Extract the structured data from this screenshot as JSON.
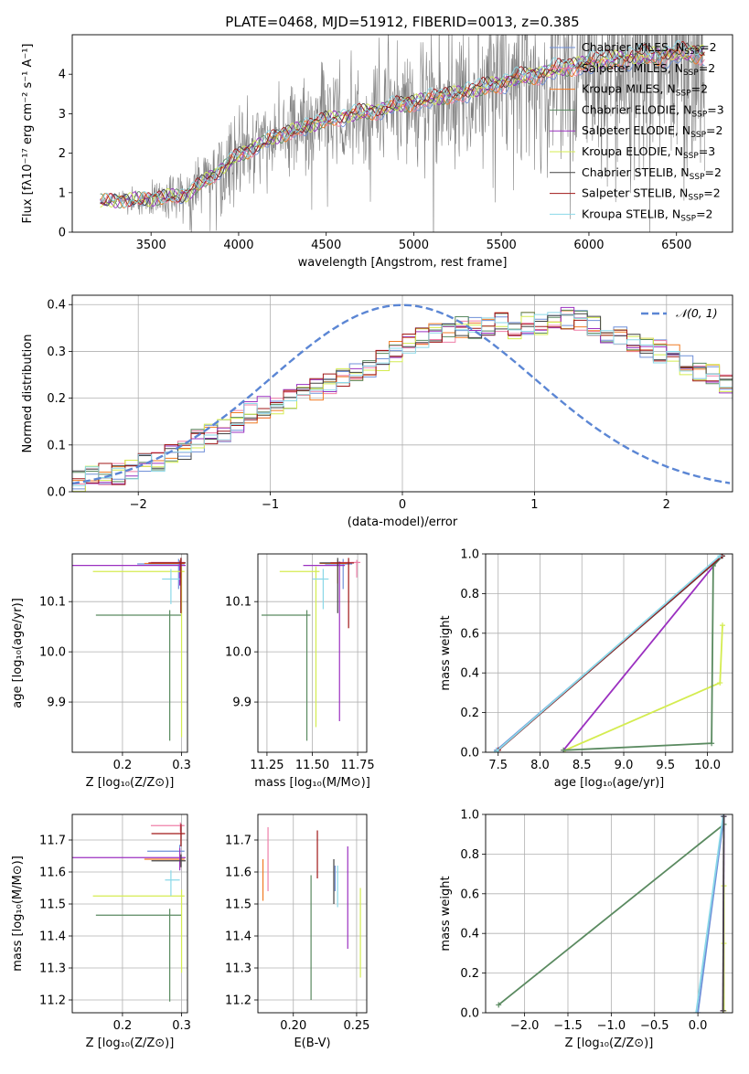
{
  "title": "PLATE=0468, MJD=51912, FIBERID=0013, z=0.385",
  "colors": {
    "chabrier_miles": "#6f8fd8",
    "salpeter_miles": "#ef7fa8",
    "kroupa_miles": "#f07a22",
    "chabrier_elodie": "#5a8a60",
    "salpeter_elodie": "#9b30c0",
    "kroupa_elodie": "#d4ec50",
    "chabrier_stelib": "#444444",
    "salpeter_stelib": "#a01818",
    "kroupa_stelib": "#8ad8e8",
    "gauss": "#5b86d4",
    "data": "#808080",
    "grid": "#b0b0b0"
  },
  "chart_data": [
    {
      "id": "spectrum",
      "type": "line",
      "xlabel": "wavelength [Angstrom, rest frame]",
      "ylabel": "Flux [fλ10⁻¹⁷ erg cm⁻² s⁻¹ A⁻¹]",
      "xlim": [
        3050,
        6820
      ],
      "ylim": [
        0,
        5
      ],
      "xticks": [
        3500,
        4000,
        4500,
        5000,
        5500,
        6000,
        6500
      ],
      "yticks": [
        0,
        1,
        2,
        3,
        4
      ],
      "grid": false,
      "legend_position": "top-right",
      "data_range": [
        3210,
        6660
      ],
      "legend": [
        {
          "label": "Chabrier MILES, N",
          "sub": "SSP",
          "tail": "=2",
          "color_key": "chabrier_miles"
        },
        {
          "label": "Salpeter MILES, N",
          "sub": "SSP",
          "tail": "=2",
          "color_key": "salpeter_miles"
        },
        {
          "label": "Kroupa MILES, N",
          "sub": "SSP",
          "tail": "=2",
          "color_key": "kroupa_miles"
        },
        {
          "label": "Chabrier ELODIE, N",
          "sub": "SSP",
          "tail": "=3",
          "color_key": "chabrier_elodie"
        },
        {
          "label": "Salpeter ELODIE, N",
          "sub": "SSP",
          "tail": "=2",
          "color_key": "salpeter_elodie"
        },
        {
          "label": "Kroupa ELODIE, N",
          "sub": "SSP",
          "tail": "=3",
          "color_key": "kroupa_elodie"
        },
        {
          "label": "Chabrier STELIB, N",
          "sub": "SSP",
          "tail": "=2",
          "color_key": "chabrier_stelib"
        },
        {
          "label": "Salpeter STELIB, N",
          "sub": "SSP",
          "tail": "=2",
          "color_key": "salpeter_stelib"
        },
        {
          "label": "Kroupa STELIB, N",
          "sub": "SSP",
          "tail": "=2",
          "color_key": "kroupa_stelib"
        }
      ],
      "model_continuum": [
        [
          3210,
          0.78
        ],
        [
          3500,
          0.85
        ],
        [
          3700,
          0.95
        ],
        [
          3900,
          1.6
        ],
        [
          4000,
          1.95
        ],
        [
          4200,
          2.4
        ],
        [
          4500,
          2.85
        ],
        [
          4800,
          3.1
        ],
        [
          5000,
          3.3
        ],
        [
          5300,
          3.55
        ],
        [
          5600,
          3.9
        ],
        [
          5800,
          4.1
        ],
        [
          6000,
          4.3
        ],
        [
          6300,
          4.45
        ],
        [
          6660,
          4.55
        ]
      ],
      "noise_amplitude": [
        [
          3210,
          0.05
        ],
        [
          3520,
          0.4
        ],
        [
          3900,
          0.9
        ],
        [
          4500,
          1.2
        ],
        [
          5000,
          1.4
        ],
        [
          5500,
          1.9
        ],
        [
          6000,
          2.3
        ],
        [
          6660,
          2.6
        ]
      ]
    },
    {
      "id": "residuals",
      "type": "line",
      "xlabel": "(data-model)/error",
      "ylabel": "Normed distribution",
      "xlim": [
        -2.5,
        2.5
      ],
      "ylim": [
        0,
        0.42
      ],
      "xticks": [
        -2,
        -1,
        0,
        1,
        2
      ],
      "yticks": [
        0.0,
        0.1,
        0.2,
        0.3,
        0.4
      ],
      "grid": true,
      "legend_position": "top-right",
      "legend": [
        {
          "label": "𝒩(0, 1)",
          "color_key": "gauss"
        }
      ],
      "bin_width": 0.1,
      "base_histogram": [
        0.02,
        0.03,
        0.04,
        0.04,
        0.05,
        0.06,
        0.06,
        0.08,
        0.09,
        0.11,
        0.12,
        0.13,
        0.15,
        0.17,
        0.18,
        0.18,
        0.2,
        0.21,
        0.22,
        0.23,
        0.24,
        0.26,
        0.27,
        0.28,
        0.3,
        0.32,
        0.33,
        0.34,
        0.34,
        0.35,
        0.35,
        0.35,
        0.36,
        0.35,
        0.36,
        0.36,
        0.36,
        0.37,
        0.37,
        0.35,
        0.34,
        0.33,
        0.32,
        0.31,
        0.3,
        0.29,
        0.27,
        0.26,
        0.25,
        0.23,
        0.22,
        0.21,
        0.2,
        0.19,
        0.17,
        0.16,
        0.15,
        0.13,
        0.12,
        0.11,
        0.1,
        0.1,
        0.09,
        0.08,
        0.08,
        0.07,
        0.07,
        0.06,
        0.06,
        0.06
      ],
      "series_order": [
        "chabrier_miles",
        "salpeter_miles",
        "kroupa_miles",
        "chabrier_elodie",
        "salpeter_elodie",
        "kroupa_elodie",
        "chabrier_stelib",
        "salpeter_stelib",
        "kroupa_stelib"
      ]
    },
    {
      "id": "age_vs_Z",
      "type": "scatter",
      "xlabel": "Z [log₁₀(Z/Z⊙)]",
      "ylabel": "age  [log₁₀(age/yr)]",
      "xlim": [
        0.115,
        0.31
      ],
      "ylim": [
        9.8,
        10.195
      ],
      "xticks": [
        0.2,
        0.3
      ],
      "yticks": [
        9.9,
        10.0,
        10.1
      ],
      "grid": true,
      "points": [
        {
          "c": "chabrier_miles",
          "x": 0.295,
          "y": 10.175,
          "xerr": [
            0.07,
            0.01
          ],
          "yerr": [
            0.05,
            0.01
          ]
        },
        {
          "c": "salpeter_miles",
          "x": 0.298,
          "y": 10.178,
          "xerr": [
            0.05,
            0.008
          ],
          "yerr": [
            0.03,
            0.005
          ]
        },
        {
          "c": "kroupa_miles",
          "x": 0.297,
          "y": 10.176,
          "xerr": [
            0.06,
            0.008
          ],
          "yerr": [
            0.04,
            0.006
          ]
        },
        {
          "c": "chabrier_elodie",
          "x": 0.28,
          "y": 10.073,
          "xerr": [
            0.125,
            0.02
          ],
          "yerr": [
            0.25,
            0.01
          ]
        },
        {
          "c": "salpeter_elodie",
          "x": 0.297,
          "y": 10.172,
          "xerr": [
            0.185,
            0.01
          ],
          "yerr": [
            0.04,
            0.008
          ]
        },
        {
          "c": "kroupa_elodie",
          "x": 0.3,
          "y": 10.16,
          "xerr": [
            0.15,
            0.005
          ],
          "yerr": [
            0.33,
            0.01
          ]
        },
        {
          "c": "chabrier_stelib",
          "x": 0.299,
          "y": 10.177,
          "xerr": [
            0.05,
            0.008
          ],
          "yerr": [
            0.1,
            0.01
          ]
        },
        {
          "c": "salpeter_stelib",
          "x": 0.299,
          "y": 10.177,
          "xerr": [
            0.055,
            0.007
          ],
          "yerr": [
            0.1,
            0.01
          ]
        },
        {
          "c": "kroupa_stelib",
          "x": 0.282,
          "y": 10.145,
          "xerr": [
            0.015,
            0.015
          ],
          "yerr": [
            0.05,
            0.02
          ]
        }
      ]
    },
    {
      "id": "age_vs_mass",
      "type": "scatter",
      "xlabel": "mass [log₁₀(M/M⊙)]",
      "ylabel": "",
      "xlim": [
        11.2,
        11.8
      ],
      "ylim": [
        9.8,
        10.195
      ],
      "xticks": [
        11.25,
        11.5,
        11.75
      ],
      "yticks": [
        9.9,
        10.0,
        10.1
      ],
      "grid": true,
      "points": [
        {
          "c": "chabrier_miles",
          "x": 11.67,
          "y": 10.175,
          "xerr": [
            0.1,
            0.05
          ],
          "yerr": [
            0.05,
            0.01
          ]
        },
        {
          "c": "salpeter_miles",
          "x": 11.745,
          "y": 10.178,
          "xerr": [
            0.1,
            0.02
          ],
          "yerr": [
            0.03,
            0.005
          ]
        },
        {
          "c": "kroupa_miles",
          "x": 11.64,
          "y": 10.176,
          "xerr": [
            0.1,
            0.05
          ],
          "yerr": [
            0.04,
            0.006
          ]
        },
        {
          "c": "chabrier_elodie",
          "x": 11.47,
          "y": 10.073,
          "xerr": [
            0.25,
            0.02
          ],
          "yerr": [
            0.25,
            0.01
          ]
        },
        {
          "c": "salpeter_elodie",
          "x": 11.65,
          "y": 10.172,
          "xerr": [
            0.2,
            0.03
          ],
          "yerr": [
            0.31,
            0.008
          ]
        },
        {
          "c": "kroupa_elodie",
          "x": 11.52,
          "y": 10.16,
          "xerr": [
            0.2,
            0.02
          ],
          "yerr": [
            0.31,
            0.01
          ]
        },
        {
          "c": "chabrier_stelib",
          "x": 11.64,
          "y": 10.177,
          "xerr": [
            0.1,
            0.02
          ],
          "yerr": [
            0.1,
            0.01
          ]
        },
        {
          "c": "salpeter_stelib",
          "x": 11.7,
          "y": 10.177,
          "xerr": [
            0.1,
            0.03
          ],
          "yerr": [
            0.13,
            0.01
          ]
        },
        {
          "c": "kroupa_stelib",
          "x": 11.56,
          "y": 10.145,
          "xerr": [
            0.06,
            0.03
          ],
          "yerr": [
            0.06,
            0.02
          ]
        }
      ]
    },
    {
      "id": "weight_vs_age",
      "type": "line",
      "xlabel": "age  [log₁₀(age/yr)]",
      "ylabel": "mass weight",
      "xlim": [
        7.35,
        10.3
      ],
      "ylim": [
        0,
        1
      ],
      "xticks": [
        7.5,
        8.0,
        8.5,
        9.0,
        9.5,
        10.0
      ],
      "yticks": [
        0.0,
        0.2,
        0.4,
        0.6,
        0.8,
        1.0
      ],
      "grid": true,
      "series": [
        {
          "c": "kroupa_elodie",
          "x": [
            8.3,
            10.15,
            10.18
          ],
          "y": [
            0.01,
            0.35,
            0.64
          ]
        },
        {
          "c": "salpeter_elodie",
          "x": [
            8.28,
            10.17
          ],
          "y": [
            0.01,
            0.99
          ]
        },
        {
          "c": "chabrier_elodie",
          "x": [
            8.28,
            10.05,
            10.07,
            10.18
          ],
          "y": [
            0.01,
            0.045,
            0.94,
            0.99
          ]
        },
        {
          "c": "salpeter_miles",
          "x": [
            7.5,
            10.17
          ],
          "y": [
            0.01,
            0.99
          ]
        },
        {
          "c": "chabrier_miles",
          "x": [
            7.48,
            10.17
          ],
          "y": [
            0.01,
            0.99
          ]
        },
        {
          "c": "chabrier_stelib",
          "x": [
            7.5,
            10.18
          ],
          "y": [
            0.01,
            0.99
          ]
        },
        {
          "c": "salpeter_stelib",
          "x": [
            7.5,
            10.17
          ],
          "y": [
            0.01,
            0.99
          ]
        },
        {
          "c": "kroupa_stelib",
          "x": [
            7.48,
            10.15
          ],
          "y": [
            0.005,
            0.99
          ]
        }
      ]
    },
    {
      "id": "mass_vs_Z",
      "type": "scatter",
      "xlabel": "Z [log₁₀(Z/Z⊙)]",
      "ylabel": "mass [log₁₀(M/M⊙)]",
      "xlim": [
        0.115,
        0.31
      ],
      "ylim": [
        11.16,
        11.78
      ],
      "xticks": [
        0.2,
        0.3
      ],
      "yticks": [
        11.2,
        11.3,
        11.4,
        11.5,
        11.6,
        11.7
      ],
      "grid": true,
      "points": [
        {
          "c": "chabrier_miles",
          "x": 0.297,
          "y": 11.665,
          "xerr": [
            0.055,
            0.008
          ],
          "yerr": [
            0.03,
            0.02
          ]
        },
        {
          "c": "salpeter_miles",
          "x": 0.298,
          "y": 11.745,
          "xerr": [
            0.05,
            0.007
          ],
          "yerr": [
            0.02,
            0.01
          ]
        },
        {
          "c": "kroupa_miles",
          "x": 0.297,
          "y": 11.64,
          "xerr": [
            0.06,
            0.008
          ],
          "yerr": [
            0.03,
            0.02
          ]
        },
        {
          "c": "chabrier_elodie",
          "x": 0.28,
          "y": 11.465,
          "xerr": [
            0.125,
            0.02
          ],
          "yerr": [
            0.27,
            0.02
          ]
        },
        {
          "c": "salpeter_elodie",
          "x": 0.297,
          "y": 11.645,
          "xerr": [
            0.185,
            0.01
          ],
          "yerr": [
            0.04,
            0.03
          ]
        },
        {
          "c": "kroupa_elodie",
          "x": 0.3,
          "y": 11.525,
          "xerr": [
            0.15,
            0.005
          ],
          "yerr": [
            0.24,
            0.02
          ]
        },
        {
          "c": "chabrier_stelib",
          "x": 0.299,
          "y": 11.635,
          "xerr": [
            0.05,
            0.008
          ],
          "yerr": [
            0.02,
            0.02
          ]
        },
        {
          "c": "salpeter_stelib",
          "x": 0.299,
          "y": 11.72,
          "xerr": [
            0.05,
            0.007
          ],
          "yerr": [
            0.04,
            0.03
          ]
        },
        {
          "c": "kroupa_stelib",
          "x": 0.282,
          "y": 11.575,
          "xerr": [
            0.01,
            0.015
          ],
          "yerr": [
            0.05,
            0.03
          ]
        }
      ]
    },
    {
      "id": "mass_vs_ebv",
      "type": "scatter",
      "xlabel": "E(B-V)",
      "ylabel": "",
      "xlim": [
        0.172,
        0.258
      ],
      "ylim": [
        11.16,
        11.78
      ],
      "xticks": [
        0.2,
        0.25
      ],
      "yticks": [
        11.2,
        11.3,
        11.4,
        11.5,
        11.6,
        11.7
      ],
      "grid": true,
      "points": [
        {
          "c": "chabrier_miles",
          "x": 0.233,
          "y": 11.58,
          "xerr": [
            0,
            0
          ],
          "yerr": [
            0.04,
            0.04
          ]
        },
        {
          "c": "salpeter_miles",
          "x": 0.18,
          "y": 11.63,
          "xerr": [
            0,
            0
          ],
          "yerr": [
            0.09,
            0.11
          ]
        },
        {
          "c": "kroupa_miles",
          "x": 0.176,
          "y": 11.58,
          "xerr": [
            0,
            0
          ],
          "yerr": [
            0.07,
            0.06
          ]
        },
        {
          "c": "chabrier_elodie",
          "x": 0.214,
          "y": 11.4,
          "xerr": [
            0,
            0
          ],
          "yerr": [
            0.2,
            0.19
          ]
        },
        {
          "c": "salpeter_elodie",
          "x": 0.243,
          "y": 11.52,
          "xerr": [
            0,
            0
          ],
          "yerr": [
            0.16,
            0.16
          ]
        },
        {
          "c": "kroupa_elodie",
          "x": 0.253,
          "y": 11.41,
          "xerr": [
            0,
            0
          ],
          "yerr": [
            0.14,
            0.14
          ]
        },
        {
          "c": "chabrier_stelib",
          "x": 0.232,
          "y": 11.55,
          "xerr": [
            0,
            0
          ],
          "yerr": [
            0.05,
            0.09
          ]
        },
        {
          "c": "salpeter_stelib",
          "x": 0.219,
          "y": 11.65,
          "xerr": [
            0,
            0
          ],
          "yerr": [
            0.07,
            0.08
          ]
        },
        {
          "c": "kroupa_stelib",
          "x": 0.235,
          "y": 11.55,
          "xerr": [
            0,
            0
          ],
          "yerr": [
            0.06,
            0.07
          ]
        }
      ]
    },
    {
      "id": "weight_vs_Z",
      "type": "line",
      "xlabel": "Z [log₁₀(Z/Z⊙)]",
      "ylabel": "mass weight",
      "xlim": [
        -2.45,
        0.4
      ],
      "ylim": [
        0,
        1
      ],
      "xticks": [
        -2.0,
        -1.5,
        -1.0,
        -0.5,
        0.0
      ],
      "yticks": [
        0.0,
        0.2,
        0.4,
        0.6,
        0.8,
        1.0
      ],
      "grid": true,
      "series": [
        {
          "c": "chabrier_elodie",
          "x": [
            -2.3,
            0.3
          ],
          "y": [
            0.04,
            0.95
          ]
        },
        {
          "c": "chabrier_miles",
          "x": [
            0.0,
            0.3
          ],
          "y": [
            0.0,
            0.99
          ]
        },
        {
          "c": "kroupa_stelib",
          "x": [
            -0.02,
            0.29
          ],
          "y": [
            0.0,
            0.99
          ]
        },
        {
          "c": "kroupa_elodie",
          "x": [
            0.3,
            0.3,
            0.3
          ],
          "y": [
            0.01,
            0.35,
            0.64
          ]
        },
        {
          "c": "salpeter_elodie",
          "x": [
            0.29,
            0.3
          ],
          "y": [
            0.01,
            0.99
          ]
        },
        {
          "c": "chabrier_stelib",
          "x": [
            0.29,
            0.3
          ],
          "y": [
            0.01,
            0.99
          ]
        }
      ]
    }
  ]
}
